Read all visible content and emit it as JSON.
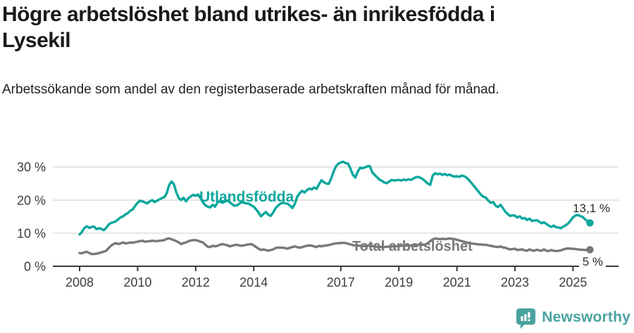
{
  "header": {
    "title": "Högre arbetslöshet bland utrikes- än inrikesfödda i Lysekil",
    "subtitle": "Arbetssökande som andel av den registerbaserade arbetskraften månad för månad."
  },
  "footer": {
    "brand": "Newsworthy",
    "logo_icon": "bar-chart-speech-bubble",
    "brand_color": "#4aa29f"
  },
  "chart_data": {
    "type": "line",
    "title": "Högre arbetslöshet bland utrikes- än inrikesfödda i Lysekil",
    "subtitle": "Arbetssökande som andel av den registerbaserade arbetskraften månad för månad.",
    "x_start_year": 2008,
    "points_per_year": 12,
    "xlim": [
      2007.9,
      2026.1
    ],
    "ylim": [
      0,
      33.5
    ],
    "grid": true,
    "legend": "inline-labels",
    "y_axis": {
      "tick_values": [
        0,
        10,
        20,
        30
      ],
      "tick_labels": [
        "0 %",
        "10 %",
        "20 %",
        "30 %"
      ]
    },
    "x_axis": {
      "tick_years": [
        2008,
        2010,
        2012,
        2014,
        2017,
        2019,
        2021,
        2023,
        2025
      ],
      "tick_labels": [
        "2008",
        "2010",
        "2012",
        "2014",
        "2017",
        "2019",
        "2021",
        "2023",
        "2025"
      ]
    },
    "series": [
      {
        "name": "Utlandsfödda",
        "color": "#0ba79c",
        "end_label": "13,1 %",
        "end_value": 13.1,
        "values": [
          9.6,
          10.4,
          11.6,
          12.1,
          11.6,
          11.9,
          12.0,
          11.2,
          11.5,
          11.3,
          10.9,
          11.6,
          12.6,
          13.1,
          13.3,
          13.6,
          14.2,
          14.8,
          15.1,
          15.7,
          16.1,
          16.8,
          17.2,
          18.3,
          19.2,
          19.8,
          19.6,
          19.3,
          19.0,
          19.6,
          20.0,
          19.4,
          19.8,
          20.2,
          20.6,
          20.9,
          22.0,
          24.5,
          25.6,
          24.8,
          22.3,
          20.6,
          20.0,
          20.7,
          19.6,
          20.6,
          21.1,
          21.6,
          21.3,
          21.7,
          20.6,
          19.3,
          18.4,
          18.0,
          17.8,
          18.6,
          18.0,
          19.3,
          19.6,
          19.2,
          19.5,
          19.9,
          19.4,
          18.8,
          18.3,
          18.4,
          18.9,
          19.4,
          19.2,
          19.0,
          18.9,
          18.4,
          18.0,
          17.2,
          16.2,
          15.1,
          15.8,
          16.4,
          15.6,
          15.2,
          16.2,
          17.5,
          18.3,
          18.9,
          19.2,
          19.0,
          18.9,
          18.3,
          17.6,
          18.9,
          21.0,
          22.1,
          22.8,
          22.3,
          23.0,
          23.5,
          23.2,
          23.8,
          23.4,
          24.8,
          26.0,
          25.4,
          25.0,
          24.9,
          26.5,
          28.6,
          30.2,
          31.0,
          31.4,
          31.6,
          31.2,
          31.0,
          29.5,
          27.6,
          26.8,
          28.6,
          29.8,
          29.6,
          29.9,
          30.2,
          30.3,
          28.4,
          27.6,
          26.9,
          26.2,
          25.8,
          25.3,
          25.1,
          25.6,
          26.1,
          25.9,
          26.0,
          26.1,
          25.9,
          26.2,
          26.0,
          26.3,
          26.1,
          26.5,
          26.9,
          27.0,
          26.7,
          26.3,
          25.6,
          25.0,
          24.6,
          27.4,
          28.1,
          27.8,
          28.0,
          27.6,
          27.9,
          27.5,
          27.7,
          27.3,
          27.1,
          27.2,
          27.0,
          27.4,
          27.2,
          26.8,
          26.0,
          25.2,
          24.3,
          23.4,
          22.5,
          21.6,
          21.0,
          20.7,
          19.8,
          19.2,
          19.4,
          18.3,
          17.9,
          18.6,
          17.6,
          16.5,
          15.8,
          15.2,
          15.4,
          15.3,
          14.7,
          15.1,
          14.4,
          14.6,
          14.0,
          14.4,
          13.7,
          13.8,
          13.9,
          13.5,
          13.0,
          13.3,
          12.8,
          12.3,
          11.9,
          12.3,
          11.8,
          11.7,
          11.5,
          12.0,
          12.4,
          12.9,
          13.8,
          14.8,
          15.3,
          15.5,
          15.2,
          14.9,
          14.2,
          13.6,
          13.1
        ]
      },
      {
        "name": "Total arbetslöshet",
        "color": "#78787c",
        "end_label": "5 %",
        "end_value": 5.0,
        "values": [
          4.0,
          3.9,
          4.2,
          4.4,
          4.0,
          3.7,
          3.7,
          3.8,
          4.0,
          4.2,
          4.4,
          4.7,
          5.5,
          6.2,
          6.7,
          7.0,
          6.7,
          6.9,
          7.2,
          6.9,
          7.0,
          7.2,
          7.1,
          7.3,
          7.4,
          7.6,
          7.7,
          7.4,
          7.5,
          7.6,
          7.7,
          7.6,
          7.6,
          7.7,
          7.8,
          7.9,
          8.3,
          8.4,
          8.2,
          7.9,
          7.6,
          7.2,
          6.7,
          7.0,
          7.2,
          7.6,
          7.8,
          7.9,
          7.9,
          7.7,
          7.4,
          7.2,
          6.5,
          5.9,
          5.8,
          6.2,
          6.0,
          6.2,
          6.5,
          6.7,
          6.5,
          6.4,
          6.0,
          6.2,
          6.4,
          6.5,
          6.3,
          6.2,
          6.3,
          6.5,
          6.6,
          6.7,
          6.3,
          5.8,
          5.3,
          4.9,
          5.1,
          4.9,
          4.7,
          4.9,
          5.1,
          5.5,
          5.6,
          5.6,
          5.6,
          5.5,
          5.3,
          5.6,
          5.8,
          6.0,
          5.8,
          5.6,
          5.8,
          6.0,
          6.2,
          6.3,
          6.2,
          6.0,
          5.8,
          6.2,
          6.0,
          6.2,
          6.3,
          6.4,
          6.6,
          6.8,
          6.9,
          7.0,
          7.0,
          7.1,
          7.0,
          6.8,
          6.6,
          6.4,
          6.3,
          6.2,
          6.2,
          6.1,
          6.1,
          6.2,
          6.2,
          6.1,
          6.0,
          5.9,
          5.9,
          5.8,
          5.8,
          5.9,
          5.9,
          6.0,
          6.0,
          6.1,
          6.1,
          6.2,
          6.2,
          6.2,
          6.3,
          6.3,
          6.4,
          6.4,
          6.5,
          6.5,
          6.5,
          6.6,
          7.0,
          7.6,
          8.1,
          8.4,
          8.3,
          8.2,
          8.3,
          8.2,
          8.3,
          8.4,
          8.3,
          8.2,
          8.0,
          7.8,
          7.6,
          7.4,
          7.2,
          7.0,
          6.9,
          6.8,
          6.7,
          6.6,
          6.6,
          6.5,
          6.5,
          6.3,
          6.2,
          6.0,
          5.9,
          5.8,
          6.0,
          5.7,
          5.6,
          5.3,
          5.1,
          5.2,
          5.3,
          4.9,
          5.0,
          5.1,
          4.8,
          4.7,
          5.1,
          4.8,
          4.7,
          5.0,
          4.8,
          4.7,
          5.1,
          4.7,
          4.6,
          4.9,
          4.7,
          4.6,
          4.7,
          4.8,
          5.1,
          5.3,
          5.4,
          5.3,
          5.3,
          5.2,
          5.1,
          5.0,
          5.0,
          4.9,
          5.0,
          5.0
        ]
      }
    ]
  }
}
